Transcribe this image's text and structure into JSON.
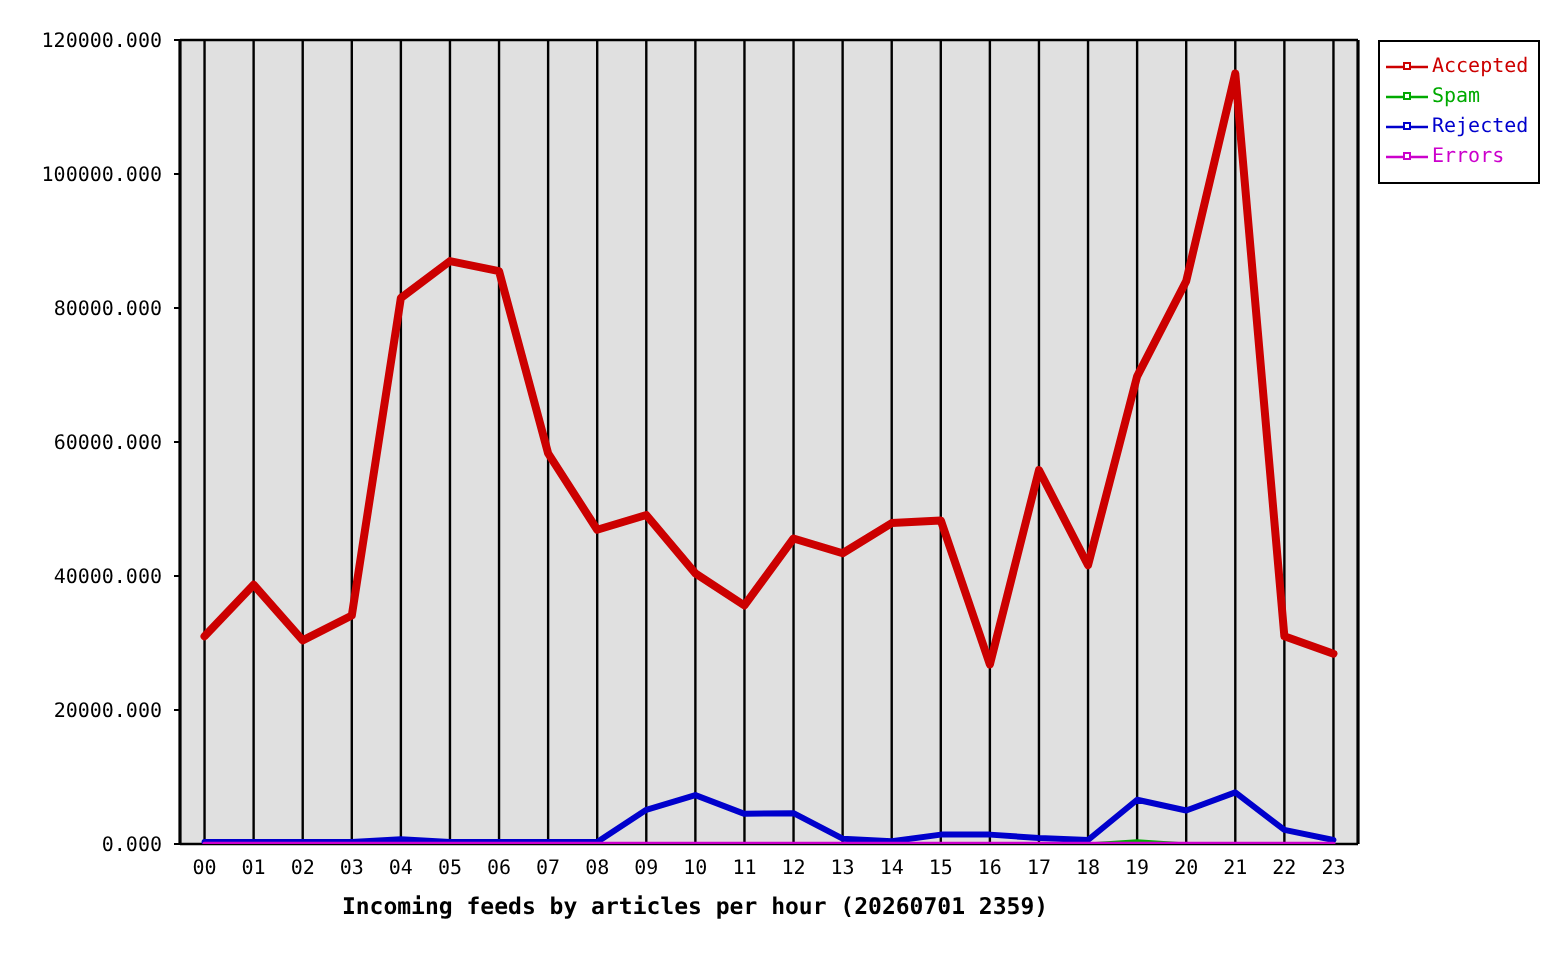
{
  "chart_data": {
    "type": "line",
    "xlabel": "Incoming feeds by articles per hour (20260701 2359)",
    "categories": [
      "00",
      "01",
      "02",
      "03",
      "04",
      "05",
      "06",
      "07",
      "08",
      "09",
      "10",
      "11",
      "12",
      "13",
      "14",
      "15",
      "16",
      "17",
      "18",
      "19",
      "20",
      "21",
      "22",
      "23"
    ],
    "series": [
      {
        "name": "Accepted",
        "color": "#cc0000",
        "values": [
          31000,
          38700,
          30400,
          34100,
          81500,
          87000,
          85500,
          58300,
          46900,
          49100,
          40400,
          35600,
          45600,
          43400,
          47900,
          48300,
          26800,
          55800,
          41600,
          69800,
          84000,
          115000,
          31000,
          28400
        ]
      },
      {
        "name": "Spam",
        "color": "#00aa00",
        "values": [
          null,
          null,
          null,
          null,
          null,
          null,
          null,
          null,
          null,
          null,
          null,
          null,
          null,
          null,
          null,
          null,
          null,
          null,
          0,
          500,
          0,
          null,
          null,
          null
        ]
      },
      {
        "name": "Rejected",
        "color": "#0000cc",
        "values": [
          300,
          300,
          300,
          300,
          700,
          300,
          300,
          300,
          300,
          5100,
          7300,
          4500,
          4600,
          800,
          400,
          1400,
          1400,
          900,
          600,
          6600,
          5000,
          7700,
          2100,
          600
        ]
      },
      {
        "name": "Errors",
        "color": "#cc00cc",
        "values": [
          0,
          0,
          0,
          0,
          0,
          0,
          0,
          0,
          0,
          0,
          0,
          0,
          0,
          0,
          0,
          0,
          0,
          0,
          0,
          0,
          0,
          0,
          0,
          0
        ]
      }
    ],
    "ylim": [
      0,
      120000
    ],
    "yticks": [
      {
        "value": 0,
        "label": "0.000"
      },
      {
        "value": 20000,
        "label": "20000.000"
      },
      {
        "value": 40000,
        "label": "40000.000"
      },
      {
        "value": 60000,
        "label": "60000.000"
      },
      {
        "value": 80000,
        "label": "80000.000"
      },
      {
        "value": 100000,
        "label": "100000.000"
      },
      {
        "value": 120000,
        "label": "120000.000"
      }
    ],
    "grid": true,
    "legend": "top right",
    "marker": "none",
    "line_style": "solid"
  }
}
